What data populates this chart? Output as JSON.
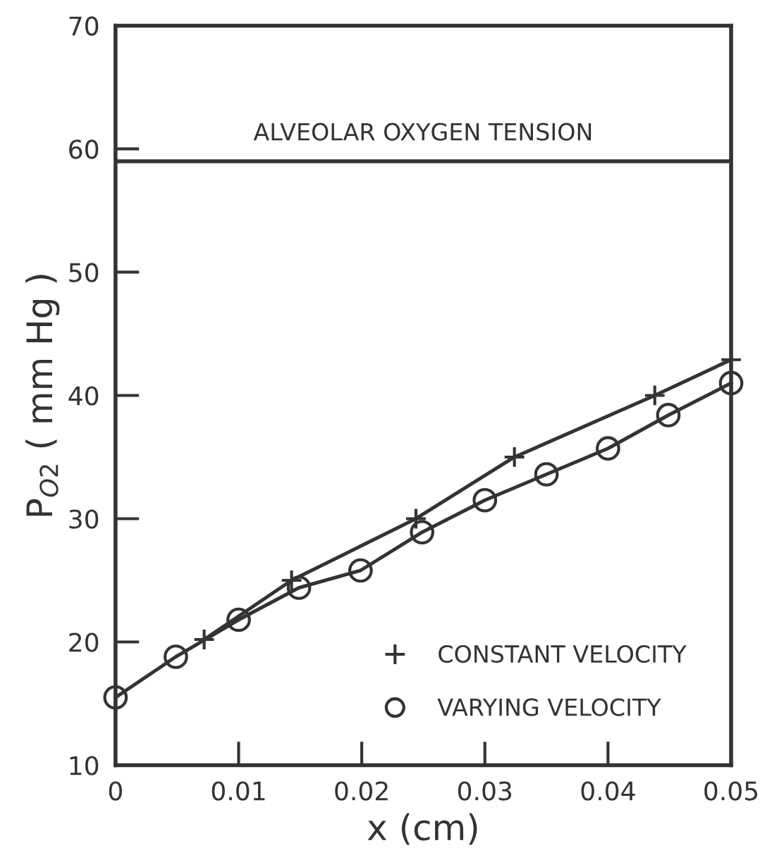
{
  "chart_data": {
    "type": "line",
    "xlabel": "x (cm)",
    "ylabel": "P$_{O2}$ ( mm Hg )",
    "xlim": [
      0,
      0.05
    ],
    "ylim": [
      10,
      70
    ],
    "xticks": [
      0,
      0.01,
      0.02,
      0.03,
      0.04,
      0.05
    ],
    "yticks": [
      10,
      20,
      30,
      40,
      50,
      60,
      70
    ],
    "grid": false,
    "legend": "bottom right",
    "line_style": "solid",
    "ref_lines": [
      {
        "axis": "y",
        "value": 59,
        "label": "ALVEOLAR OXYGEN TENSION",
        "color": "#333333"
      }
    ],
    "series": [
      {
        "name": "CONSTANT VELOCITY",
        "color": "#333333",
        "marker": "cross",
        "x": [
          0.0072,
          0.0143,
          0.0244,
          0.0324,
          0.0438,
          0.05
        ],
        "values": [
          20.2,
          25.0,
          30.0,
          35.0,
          40.0,
          42.9
        ]
      },
      {
        "name": "VARYING VELOCITY",
        "color": "#333333",
        "marker": "circle",
        "x": [
          0,
          0.0049,
          0.01,
          0.0149,
          0.0199,
          0.0249,
          0.03,
          0.035,
          0.04,
          0.0449,
          0.05
        ],
        "values": [
          15.5,
          18.8,
          21.8,
          24.4,
          25.8,
          28.9,
          31.5,
          33.6,
          35.7,
          38.4,
          41.0
        ]
      }
    ]
  }
}
